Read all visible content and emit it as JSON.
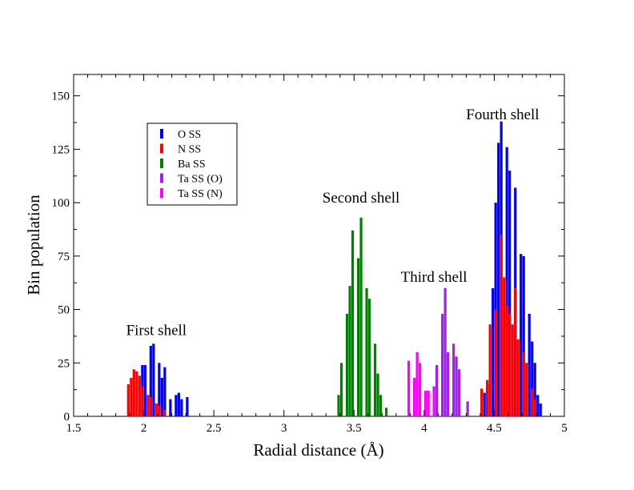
{
  "chart_data": {
    "type": "bar",
    "xlabel": "Radial distance (Å)",
    "ylabel": "Bin population",
    "xlim": [
      1.5,
      5.0
    ],
    "ylim": [
      0,
      160
    ],
    "x_ticks": [
      "1.5",
      "2",
      "2.5",
      "3",
      "3.5",
      "4",
      "4.5",
      "5"
    ],
    "y_ticks": [
      "0",
      "25",
      "50",
      "75",
      "100",
      "125",
      "150"
    ],
    "grid": false,
    "legend_position": "upper-left",
    "annotations": [
      {
        "text": "First shell",
        "x": 2.09,
        "y": 38
      },
      {
        "text": "Second shell",
        "x": 3.55,
        "y": 100
      },
      {
        "text": "Third shell",
        "x": 4.07,
        "y": 63
      },
      {
        "text": "Fourth shell",
        "x": 4.56,
        "y": 139
      }
    ],
    "series": [
      {
        "name": "O SS",
        "color": "#0000ff",
        "points": [
          [
            1.99,
            24
          ],
          [
            2.01,
            24
          ],
          [
            2.05,
            33
          ],
          [
            2.07,
            34
          ],
          [
            2.11,
            25
          ],
          [
            2.13,
            18
          ],
          [
            2.15,
            23
          ],
          [
            2.19,
            8
          ],
          [
            2.23,
            10
          ],
          [
            2.25,
            11
          ],
          [
            2.27,
            8
          ],
          [
            2.31,
            9
          ],
          [
            4.43,
            11
          ],
          [
            4.45,
            15
          ],
          [
            4.49,
            60
          ],
          [
            4.51,
            100
          ],
          [
            4.53,
            128
          ],
          [
            4.55,
            138
          ],
          [
            4.59,
            126
          ],
          [
            4.61,
            115
          ],
          [
            4.65,
            107
          ],
          [
            4.69,
            76
          ],
          [
            4.71,
            75
          ],
          [
            4.75,
            48
          ],
          [
            4.77,
            35
          ],
          [
            4.79,
            25
          ],
          [
            4.81,
            10
          ],
          [
            4.83,
            6
          ]
        ]
      },
      {
        "name": "N SS",
        "color": "#ff0000",
        "points": [
          [
            1.89,
            15
          ],
          [
            1.91,
            18
          ],
          [
            1.93,
            22
          ],
          [
            1.95,
            21
          ],
          [
            1.97,
            19
          ],
          [
            1.99,
            14
          ],
          [
            2.03,
            10
          ],
          [
            2.05,
            9
          ],
          [
            2.09,
            6
          ],
          [
            2.11,
            5
          ],
          [
            2.15,
            3
          ],
          [
            4.41,
            13
          ],
          [
            4.45,
            17
          ],
          [
            4.47,
            43
          ],
          [
            4.51,
            50
          ],
          [
            4.55,
            85
          ],
          [
            4.57,
            65
          ],
          [
            4.59,
            52
          ],
          [
            4.61,
            48
          ],
          [
            4.63,
            43
          ],
          [
            4.65,
            60
          ],
          [
            4.67,
            36
          ],
          [
            4.71,
            30
          ],
          [
            4.73,
            25
          ],
          [
            4.77,
            13
          ],
          [
            4.79,
            8
          ]
        ]
      },
      {
        "name": "Ba SS",
        "color": "#008000",
        "points": [
          [
            3.39,
            10
          ],
          [
            3.41,
            25
          ],
          [
            3.45,
            48
          ],
          [
            3.47,
            61
          ],
          [
            3.49,
            87
          ],
          [
            3.53,
            74
          ],
          [
            3.55,
            93
          ],
          [
            3.59,
            60
          ],
          [
            3.61,
            55
          ],
          [
            3.65,
            34
          ],
          [
            3.67,
            20
          ],
          [
            3.69,
            10
          ],
          [
            3.73,
            4
          ]
        ]
      },
      {
        "name": "Ta SS (O)",
        "color": "#a020f0",
        "points": [
          [
            4.07,
            14
          ],
          [
            4.09,
            24
          ],
          [
            4.13,
            48
          ],
          [
            4.15,
            60
          ],
          [
            4.17,
            30
          ],
          [
            4.21,
            34
          ],
          [
            4.23,
            28
          ],
          [
            4.25,
            22
          ],
          [
            4.31,
            7
          ]
        ]
      },
      {
        "name": "Ta SS (N)",
        "color": "#ff00ff",
        "points": [
          [
            3.89,
            26
          ],
          [
            3.93,
            18
          ],
          [
            3.95,
            30
          ],
          [
            3.97,
            25
          ],
          [
            4.01,
            12
          ],
          [
            4.03,
            12
          ],
          [
            4.07,
            12
          ]
        ]
      }
    ]
  }
}
